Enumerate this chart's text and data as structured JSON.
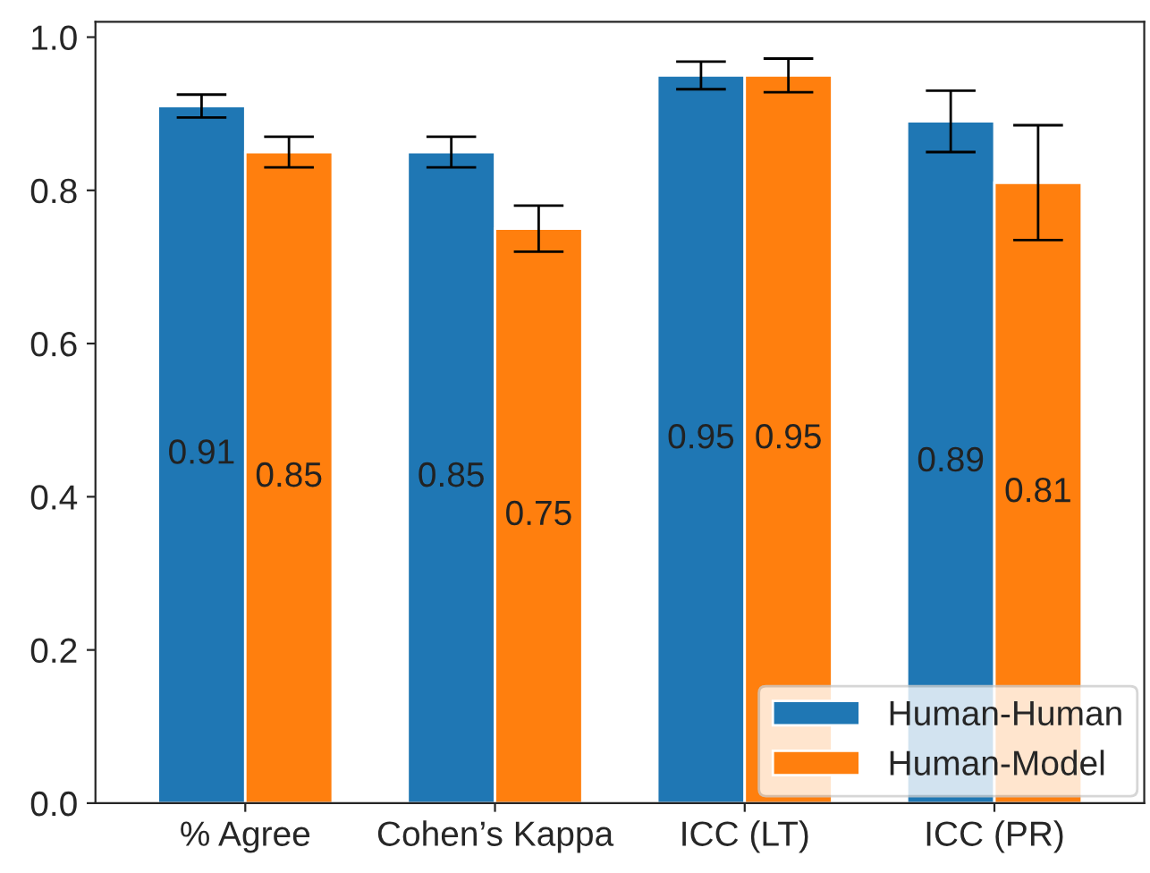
{
  "chart_data": {
    "type": "bar",
    "categories": [
      "% Agree",
      "Cohen’s Kappa",
      "ICC (LT)",
      "ICC (PR)"
    ],
    "series": [
      {
        "name": "Human-Human",
        "color": "#1f77b4",
        "values": [
          0.91,
          0.85,
          0.95,
          0.89
        ],
        "errors": [
          0.015,
          0.02,
          0.018,
          0.04
        ]
      },
      {
        "name": "Human-Model",
        "color": "#ff7f0e",
        "values": [
          0.85,
          0.75,
          0.95,
          0.81
        ],
        "errors": [
          0.02,
          0.03,
          0.022,
          0.075
        ]
      }
    ],
    "ylim": [
      0,
      1.02
    ],
    "yticks": [
      {
        "value": 0,
        "label": "0.0"
      },
      {
        "value": 0.2,
        "label": "0.2"
      },
      {
        "value": 0.4,
        "label": "0.4"
      },
      {
        "value": 0.6,
        "label": "0.6"
      },
      {
        "value": 0.8,
        "label": "0.8"
      },
      {
        "value": 1,
        "label": "1.0"
      }
    ],
    "data_labels": true,
    "legend": "bottom right",
    "grid": false
  }
}
